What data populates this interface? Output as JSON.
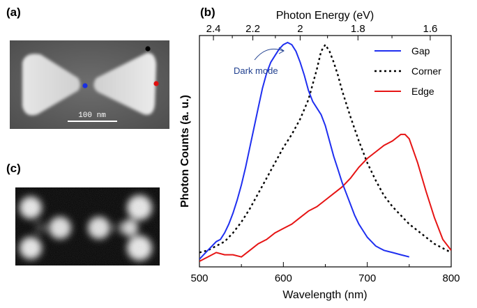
{
  "panels": {
    "a": "(a)",
    "b": "(b)",
    "c": "(c)"
  },
  "sem_image": {
    "scale_bar_label": "100 nm",
    "marker_colors": [
      "#000000",
      "#1a2fe0",
      "#e01010"
    ]
  },
  "colors": {
    "gap": "#1f2ff0",
    "corner": "#000000",
    "edge": "#e61414"
  },
  "chart_data": {
    "type": "line",
    "xlabel": "Wavelength (nm)",
    "ylabel": "Photon Counts (a. u.)",
    "top_axis_label": "Photon Energy (eV)",
    "xlim": [
      500,
      800
    ],
    "ylim": [
      0,
      1
    ],
    "x_ticks": [
      500,
      600,
      700,
      800
    ],
    "top_ticks": [
      2.4,
      2.2,
      2,
      1.8,
      1.6
    ],
    "annotation": "Dark mode",
    "legend_position": "top-right",
    "series": [
      {
        "name": "Gap",
        "style": "solid",
        "x": [
          500,
          505,
          510,
          515,
          520,
          525,
          530,
          535,
          540,
          545,
          550,
          555,
          560,
          565,
          570,
          575,
          580,
          585,
          590,
          595,
          600,
          605,
          610,
          615,
          620,
          625,
          630,
          635,
          640,
          645,
          650,
          655,
          660,
          665,
          670,
          675,
          680,
          685,
          690,
          695,
          700,
          705,
          710,
          715,
          720,
          725,
          730,
          735,
          740,
          745,
          750
        ],
        "y": [
          0.01,
          0.03,
          0.05,
          0.07,
          0.09,
          0.1,
          0.13,
          0.17,
          0.22,
          0.28,
          0.35,
          0.43,
          0.52,
          0.61,
          0.7,
          0.79,
          0.86,
          0.91,
          0.94,
          0.97,
          0.99,
          1.0,
          0.99,
          0.96,
          0.91,
          0.85,
          0.78,
          0.73,
          0.7,
          0.67,
          0.62,
          0.55,
          0.48,
          0.42,
          0.36,
          0.31,
          0.26,
          0.21,
          0.17,
          0.14,
          0.11,
          0.09,
          0.07,
          0.06,
          0.05,
          0.045,
          0.04,
          0.035,
          0.03,
          0.025,
          0.02
        ]
      },
      {
        "name": "Corner",
        "style": "dotted",
        "x": [
          500,
          510,
          520,
          530,
          540,
          550,
          560,
          570,
          580,
          590,
          600,
          610,
          620,
          630,
          640,
          645,
          650,
          655,
          660,
          665,
          670,
          680,
          690,
          700,
          710,
          720,
          730,
          740,
          750,
          760,
          770,
          780,
          790,
          800
        ],
        "y": [
          0.04,
          0.05,
          0.07,
          0.09,
          0.13,
          0.18,
          0.24,
          0.31,
          0.38,
          0.45,
          0.52,
          0.58,
          0.65,
          0.74,
          0.88,
          0.96,
          0.99,
          0.96,
          0.91,
          0.85,
          0.78,
          0.66,
          0.55,
          0.45,
          0.37,
          0.3,
          0.25,
          0.21,
          0.17,
          0.14,
          0.11,
          0.08,
          0.06,
          0.04
        ]
      },
      {
        "name": "Edge",
        "style": "solid",
        "x": [
          500,
          510,
          520,
          530,
          540,
          550,
          560,
          570,
          580,
          590,
          600,
          610,
          620,
          630,
          640,
          650,
          660,
          670,
          680,
          690,
          700,
          710,
          720,
          730,
          740,
          745,
          750,
          760,
          770,
          780,
          790,
          800
        ],
        "y": [
          0.0,
          0.02,
          0.04,
          0.03,
          0.03,
          0.02,
          0.05,
          0.08,
          0.1,
          0.13,
          0.15,
          0.17,
          0.2,
          0.23,
          0.25,
          0.28,
          0.31,
          0.34,
          0.38,
          0.43,
          0.47,
          0.5,
          0.53,
          0.55,
          0.58,
          0.58,
          0.56,
          0.45,
          0.32,
          0.2,
          0.1,
          0.05
        ]
      }
    ]
  }
}
